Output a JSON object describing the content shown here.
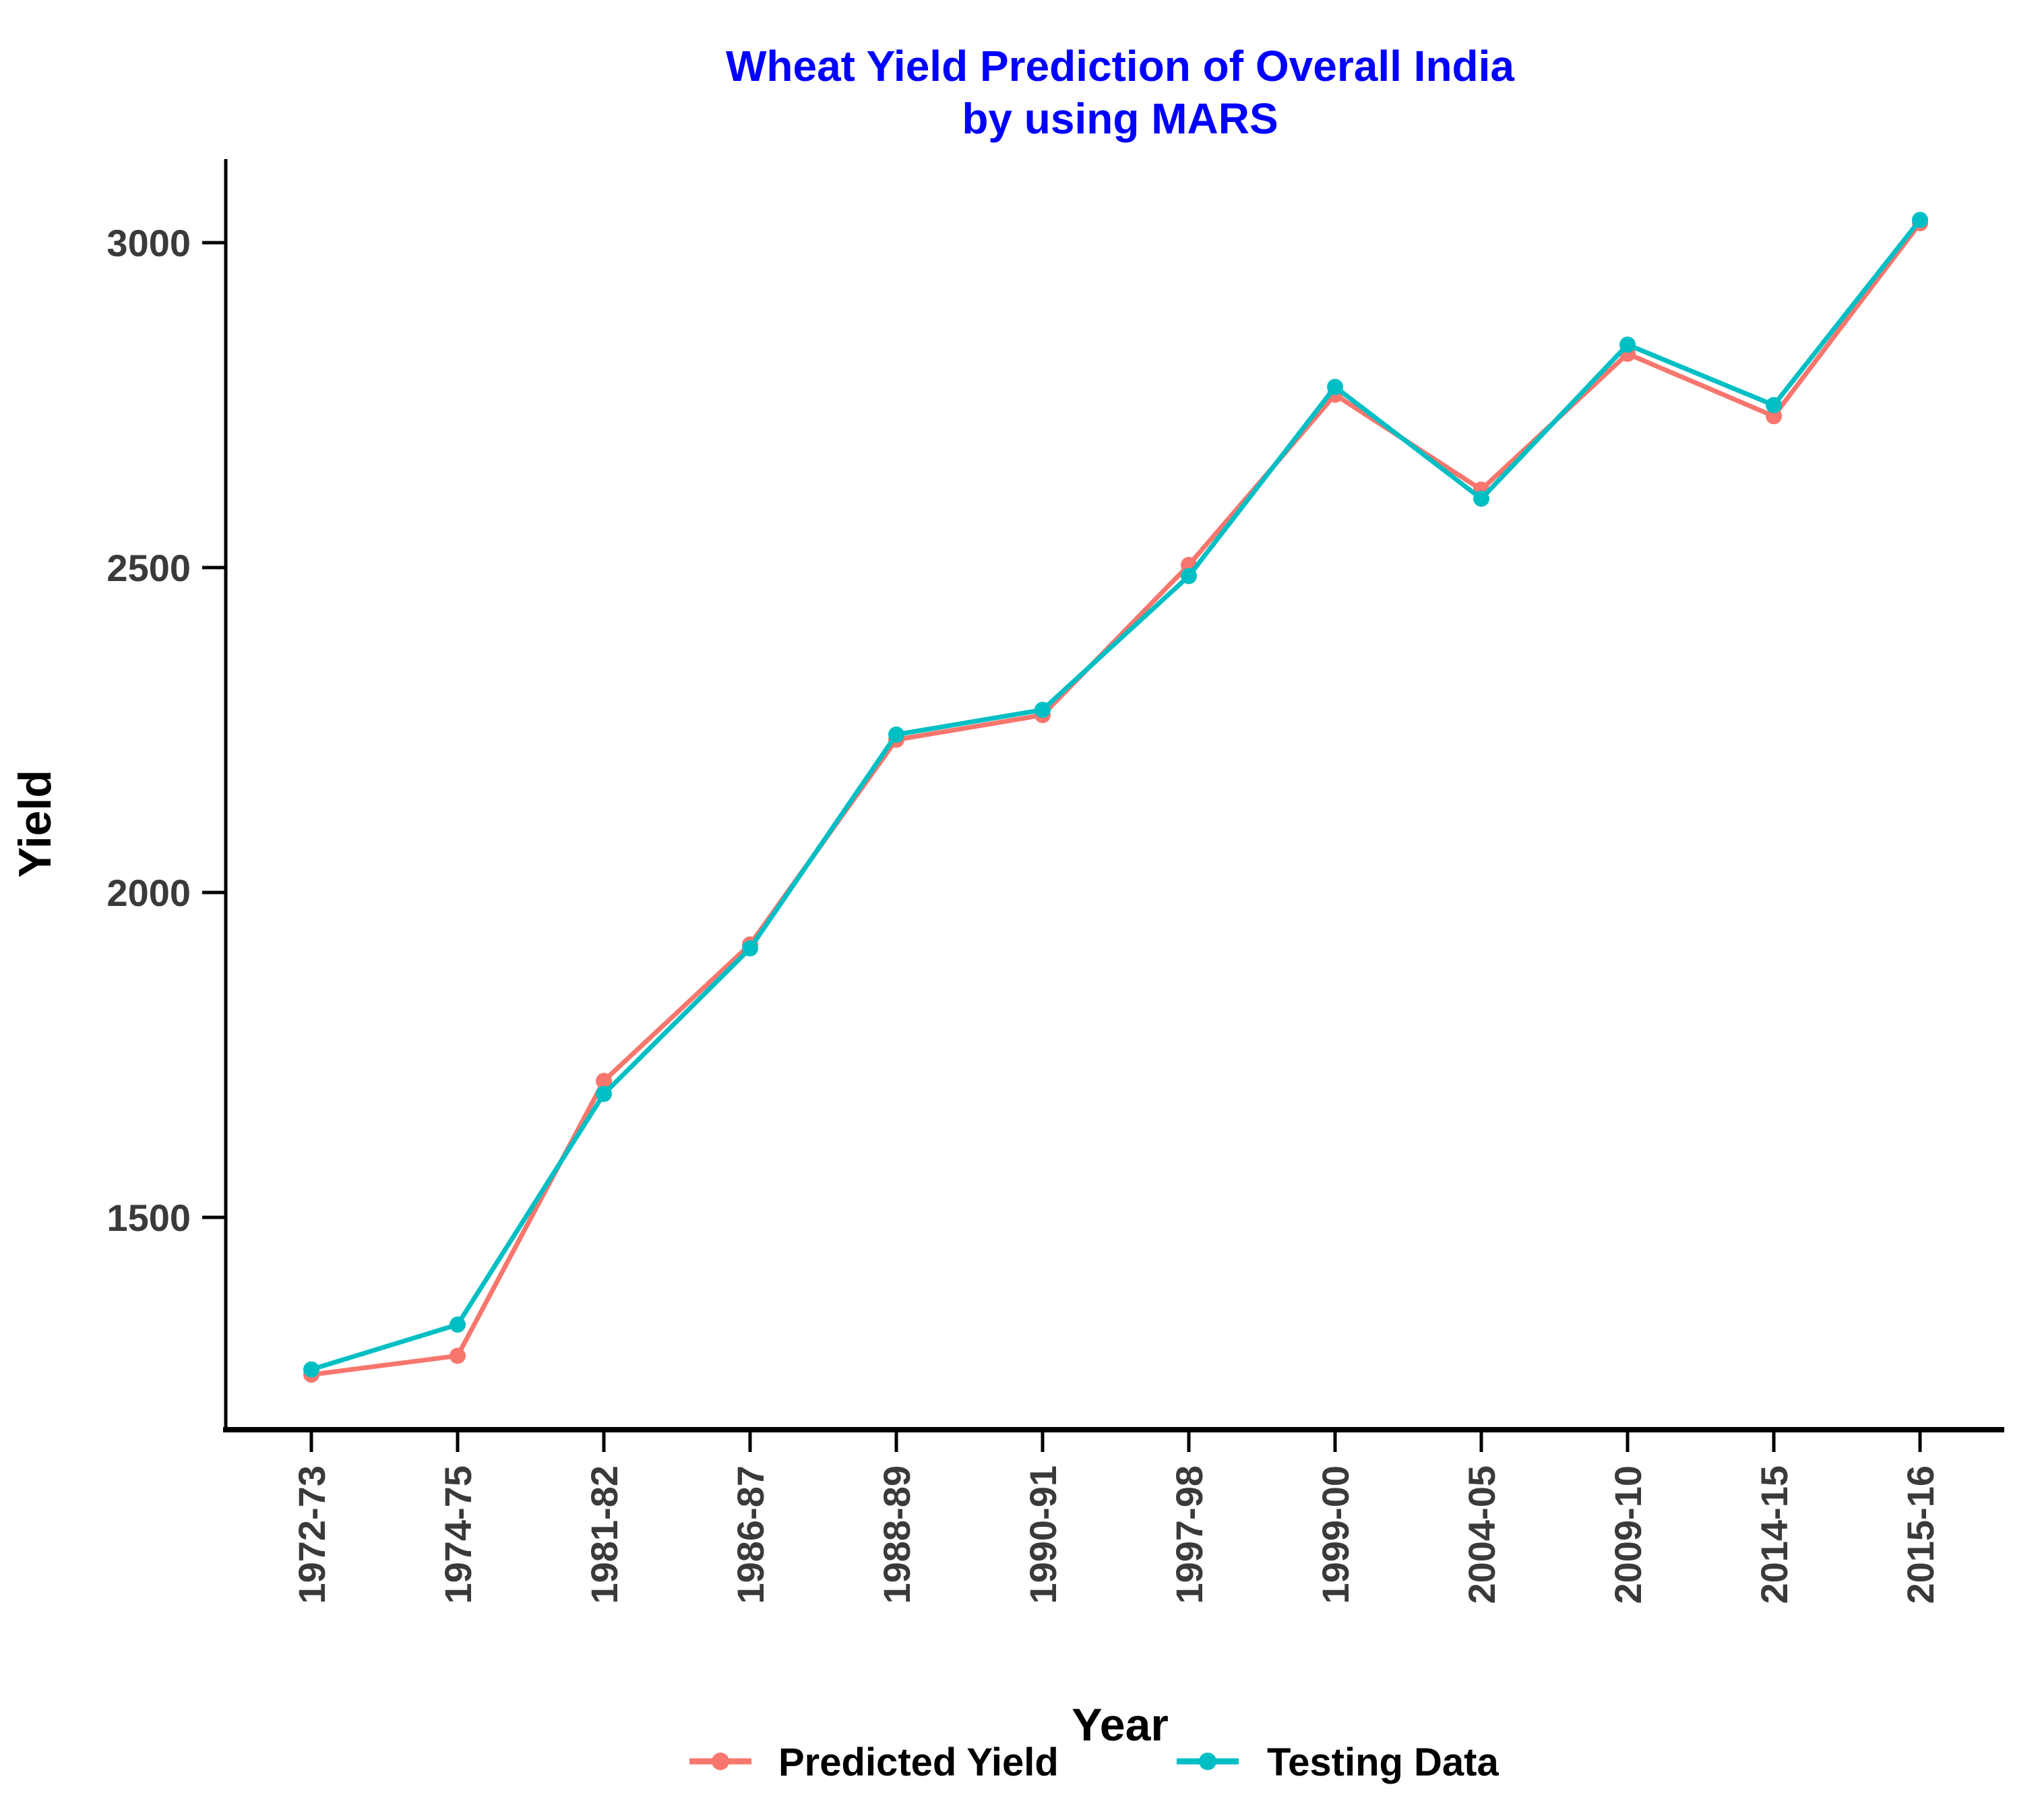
{
  "title": {
    "line1": "Wheat Yield Prediction of Overall India",
    "line2": "by using MARS",
    "color": "#0000FF"
  },
  "chart_data": {
    "type": "line",
    "title": "Wheat Yield Prediction of Overall India by using MARS",
    "xlabel": "Year",
    "ylabel": "Yield",
    "categories": [
      "1972-73",
      "1974-75",
      "1981-82",
      "1986-87",
      "1988-89",
      "1990-91",
      "1997-98",
      "1999-00",
      "2004-05",
      "2009-10",
      "2014-15",
      "2015-16"
    ],
    "series": [
      {
        "name": "Predicted Yield",
        "color": "#F8766D",
        "values": [
          1258,
          1287,
          1710,
          1920,
          2235,
          2273,
          2504,
          2766,
          2620,
          2829,
          2733,
          3030
        ]
      },
      {
        "name": "Testing Data",
        "color": "#00BFC4",
        "values": [
          1266,
          1335,
          1690,
          1914,
          2243,
          2281,
          2487,
          2778,
          2606,
          2843,
          2750,
          3035
        ]
      }
    ],
    "yticks": [
      1500,
      2000,
      2500,
      3000
    ],
    "ylim": [
      1150,
      3100
    ],
    "grid": false,
    "marker": "circle",
    "legend_position": "bottom"
  }
}
